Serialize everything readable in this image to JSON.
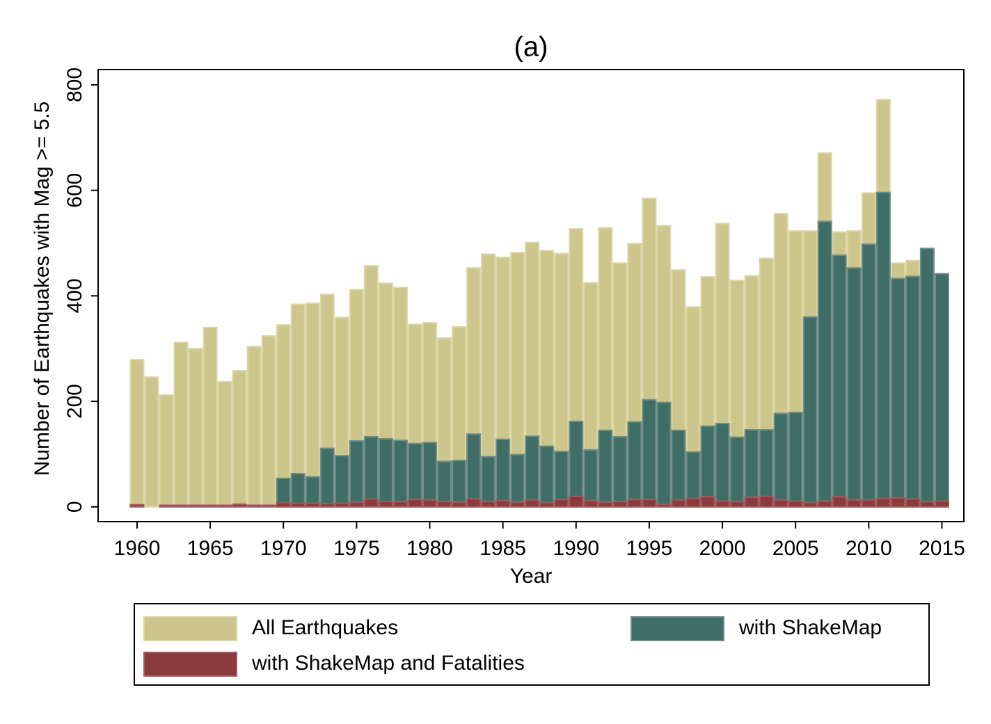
{
  "chart_data": {
    "type": "bar",
    "title": "(a)",
    "xlabel": "Year",
    "ylabel": "Number of Earthquakes with Mag >= 5.5",
    "x": [
      1960,
      1961,
      1962,
      1963,
      1964,
      1965,
      1966,
      1967,
      1968,
      1969,
      1970,
      1971,
      1972,
      1973,
      1974,
      1975,
      1976,
      1977,
      1978,
      1979,
      1980,
      1981,
      1982,
      1983,
      1984,
      1985,
      1986,
      1987,
      1988,
      1989,
      1990,
      1991,
      1992,
      1993,
      1994,
      1995,
      1996,
      1997,
      1998,
      1999,
      2000,
      2001,
      2002,
      2003,
      2004,
      2005,
      2006,
      2007,
      2008,
      2009,
      2010,
      2011,
      2012,
      2013,
      2014,
      2015
    ],
    "series": [
      {
        "name": "All Earthquakes",
        "color": "#cdc68c",
        "values": [
          279,
          246,
          212,
          312,
          300,
          340,
          237,
          258,
          304,
          324,
          345,
          384,
          386,
          403,
          359,
          412,
          457,
          424,
          416,
          346,
          349,
          320,
          341,
          453,
          479,
          473,
          482,
          501,
          486,
          480,
          527,
          425,
          529,
          462,
          499,
          585,
          533,
          449,
          379,
          436,
          537,
          429,
          438,
          471,
          556,
          523,
          523,
          671,
          521,
          523,
          595,
          772,
          462,
          467,
          490,
          442
        ]
      },
      {
        "name": "with ShakeMap",
        "color": "#3e6e66",
        "values": [
          0,
          0,
          0,
          0,
          0,
          0,
          0,
          0,
          0,
          0,
          54,
          63,
          57,
          111,
          97,
          125,
          133,
          129,
          126,
          120,
          122,
          86,
          88,
          138,
          95,
          128,
          99,
          134,
          115,
          105,
          162,
          108,
          145,
          133,
          161,
          203,
          198,
          145,
          104,
          153,
          158,
          132,
          146,
          146,
          177,
          179,
          360,
          541,
          477,
          453,
          498,
          596,
          433,
          437,
          490,
          442
        ]
      },
      {
        "name": "with ShakeMap and Fatalities",
        "color": "#8b3a3e",
        "values": [
          4,
          0,
          3,
          3,
          3,
          3,
          3,
          5,
          3,
          3,
          8,
          7,
          7,
          6,
          7,
          9,
          15,
          10,
          10,
          14,
          13,
          10,
          9,
          15,
          10,
          12,
          9,
          13,
          8,
          14,
          20,
          12,
          9,
          10,
          14,
          14,
          5,
          13,
          16,
          19,
          11,
          10,
          18,
          20,
          13,
          11,
          8,
          11,
          19,
          13,
          13,
          16,
          17,
          15,
          10,
          11
        ]
      }
    ],
    "xlim": [
      1957.34,
      2016.5
    ],
    "xticks": [
      1960,
      1965,
      1970,
      1975,
      1980,
      1985,
      1990,
      1995,
      2000,
      2005,
      2010,
      2015
    ],
    "ylim": [
      -28,
      829
    ],
    "yticks": [
      0,
      200,
      400,
      600,
      800
    ]
  }
}
